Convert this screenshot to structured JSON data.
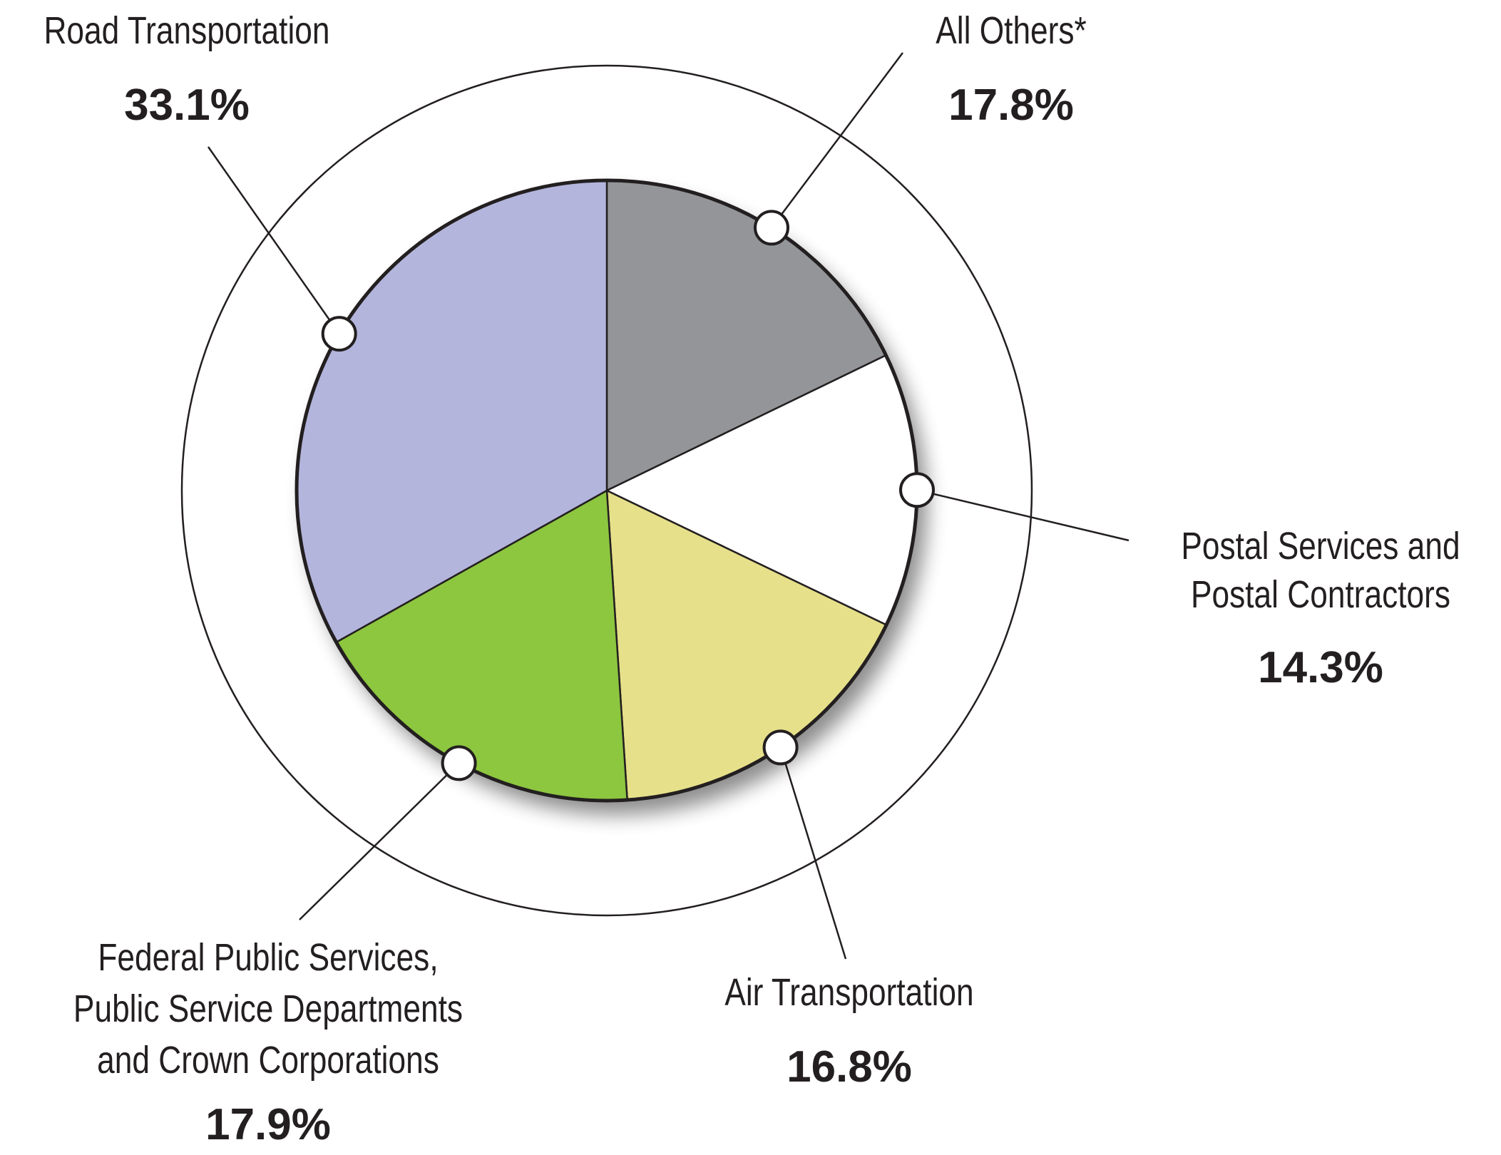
{
  "chart_data": {
    "type": "pie",
    "categories": [
      "All Others*",
      "Postal Services and Postal Contractors",
      "Air Transportation",
      "Federal Public Services, Public Service Departments and Crown Corporations",
      "Road Transportation"
    ],
    "values": [
      17.8,
      14.3,
      16.8,
      17.9,
      33.1
    ],
    "value_labels": [
      "17.8%",
      "14.3%",
      "16.8%",
      "17.9%",
      "33.1%"
    ],
    "colors": [
      "#939598",
      "#ffffff",
      "#e6e08a",
      "#8dc63f",
      "#b3b5dc"
    ],
    "slice_order": "clockwise from 12 o'clock",
    "title": "",
    "legend": "none (leader-line callouts)"
  }
}
